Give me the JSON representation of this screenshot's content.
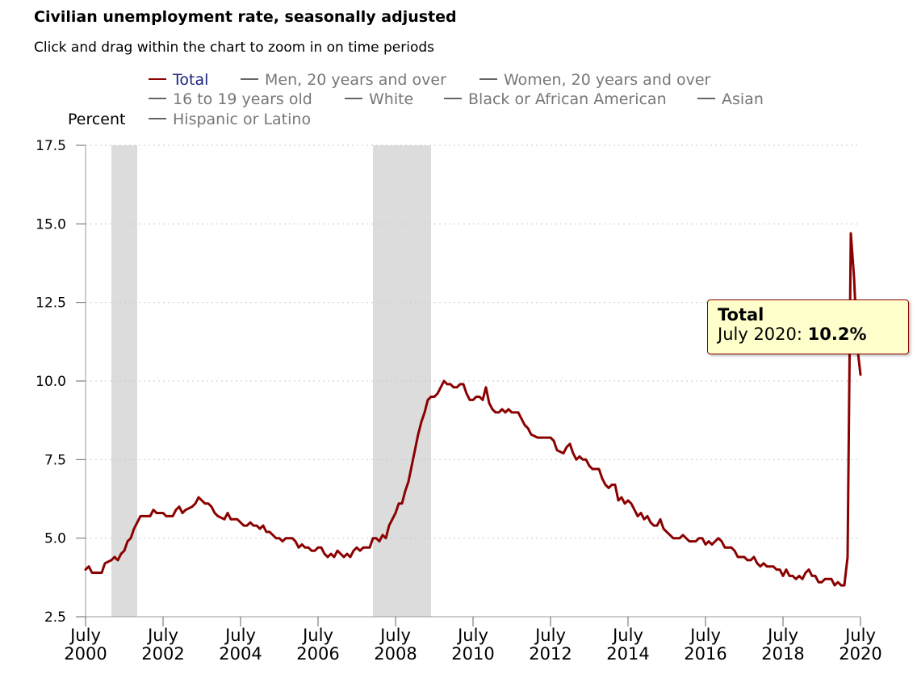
{
  "header": {
    "title": "Civilian unemployment rate, seasonally adjusted",
    "subtitle": "Click and drag within the chart to zoom in on time periods"
  },
  "legend": {
    "items": [
      {
        "label": "Total",
        "active": true
      },
      {
        "label": "Men, 20 years and over",
        "active": false
      },
      {
        "label": "Women, 20 years and over",
        "active": false
      },
      {
        "label": "16 to 19 years old",
        "active": false
      },
      {
        "label": "White",
        "active": false
      },
      {
        "label": "Black or African American",
        "active": false
      },
      {
        "label": "Asian",
        "active": false
      },
      {
        "label": "Hispanic or Latino",
        "active": false
      }
    ]
  },
  "tooltip": {
    "series": "Total",
    "date": "July 2020:",
    "value": "10.2%"
  },
  "colors": {
    "series_total": "#8b0000",
    "recession_band": "#dcdcdc",
    "grid": "#c8c8c8",
    "legend_active_text": "#1a237e",
    "legend_inactive": "#777777",
    "tooltip_bg": "#ffffcc"
  },
  "chart_data": {
    "type": "line",
    "title": "Civilian unemployment rate, seasonally adjusted",
    "ylabel": "Percent",
    "xlabel": "",
    "ylim": [
      2.5,
      17.5
    ],
    "xlim": [
      "2000-07",
      "2020-07"
    ],
    "yticks": [
      "2.5",
      "5.0",
      "7.5",
      "10.0",
      "12.5",
      "15.0",
      "17.5"
    ],
    "xticks": [
      {
        "month": "July",
        "year": "2000"
      },
      {
        "month": "July",
        "year": "2002"
      },
      {
        "month": "July",
        "year": "2004"
      },
      {
        "month": "July",
        "year": "2006"
      },
      {
        "month": "July",
        "year": "2008"
      },
      {
        "month": "July",
        "year": "2010"
      },
      {
        "month": "July",
        "year": "2012"
      },
      {
        "month": "July",
        "year": "2014"
      },
      {
        "month": "July",
        "year": "2016"
      },
      {
        "month": "July",
        "year": "2018"
      },
      {
        "month": "July",
        "year": "2020"
      }
    ],
    "grid": "horizontal dotted",
    "recessions": [
      {
        "start": "2001-03",
        "end": "2001-11"
      },
      {
        "start": "2007-12",
        "end": "2009-06"
      }
    ],
    "series": [
      {
        "name": "Total",
        "points": [
          [
            "2000-07",
            4.0
          ],
          [
            "2000-08",
            4.1
          ],
          [
            "2000-09",
            3.9
          ],
          [
            "2000-12",
            3.9
          ],
          [
            "2001-01",
            4.2
          ],
          [
            "2001-03",
            4.3
          ],
          [
            "2001-04",
            4.4
          ],
          [
            "2001-05",
            4.3
          ],
          [
            "2001-06",
            4.5
          ],
          [
            "2001-07",
            4.6
          ],
          [
            "2001-08",
            4.9
          ],
          [
            "2001-09",
            5.0
          ],
          [
            "2001-10",
            5.3
          ],
          [
            "2001-11",
            5.5
          ],
          [
            "2001-12",
            5.7
          ],
          [
            "2002-03",
            5.7
          ],
          [
            "2002-04",
            5.9
          ],
          [
            "2002-05",
            5.8
          ],
          [
            "2002-06",
            5.8
          ],
          [
            "2002-07",
            5.8
          ],
          [
            "2002-08",
            5.7
          ],
          [
            "2002-10",
            5.7
          ],
          [
            "2002-11",
            5.9
          ],
          [
            "2002-12",
            6.0
          ],
          [
            "2003-01",
            5.8
          ],
          [
            "2003-02",
            5.9
          ],
          [
            "2003-04",
            6.0
          ],
          [
            "2003-05",
            6.1
          ],
          [
            "2003-06",
            6.3
          ],
          [
            "2003-07",
            6.2
          ],
          [
            "2003-08",
            6.1
          ],
          [
            "2003-09",
            6.1
          ],
          [
            "2003-10",
            6.0
          ],
          [
            "2003-11",
            5.8
          ],
          [
            "2003-12",
            5.7
          ],
          [
            "2004-02",
            5.6
          ],
          [
            "2004-03",
            5.8
          ],
          [
            "2004-04",
            5.6
          ],
          [
            "2004-06",
            5.6
          ],
          [
            "2004-07",
            5.5
          ],
          [
            "2004-08",
            5.4
          ],
          [
            "2004-09",
            5.4
          ],
          [
            "2004-10",
            5.5
          ],
          [
            "2004-11",
            5.4
          ],
          [
            "2004-12",
            5.4
          ],
          [
            "2005-01",
            5.3
          ],
          [
            "2005-02",
            5.4
          ],
          [
            "2005-03",
            5.2
          ],
          [
            "2005-04",
            5.2
          ],
          [
            "2005-05",
            5.1
          ],
          [
            "2005-06",
            5.0
          ],
          [
            "2005-07",
            5.0
          ],
          [
            "2005-08",
            4.9
          ],
          [
            "2005-09",
            5.0
          ],
          [
            "2005-11",
            5.0
          ],
          [
            "2005-12",
            4.9
          ],
          [
            "2006-01",
            4.7
          ],
          [
            "2006-02",
            4.8
          ],
          [
            "2006-03",
            4.7
          ],
          [
            "2006-04",
            4.7
          ],
          [
            "2006-05",
            4.6
          ],
          [
            "2006-06",
            4.6
          ],
          [
            "2006-07",
            4.7
          ],
          [
            "2006-08",
            4.7
          ],
          [
            "2006-09",
            4.5
          ],
          [
            "2006-10",
            4.4
          ],
          [
            "2006-11",
            4.5
          ],
          [
            "2006-12",
            4.4
          ],
          [
            "2007-01",
            4.6
          ],
          [
            "2007-02",
            4.5
          ],
          [
            "2007-03",
            4.4
          ],
          [
            "2007-04",
            4.5
          ],
          [
            "2007-05",
            4.4
          ],
          [
            "2007-06",
            4.6
          ],
          [
            "2007-07",
            4.7
          ],
          [
            "2007-08",
            4.6
          ],
          [
            "2007-09",
            4.7
          ],
          [
            "2007-11",
            4.7
          ],
          [
            "2007-12",
            5.0
          ],
          [
            "2008-01",
            5.0
          ],
          [
            "2008-02",
            4.9
          ],
          [
            "2008-03",
            5.1
          ],
          [
            "2008-04",
            5.0
          ],
          [
            "2008-05",
            5.4
          ],
          [
            "2008-06",
            5.6
          ],
          [
            "2008-07",
            5.8
          ],
          [
            "2008-08",
            6.1
          ],
          [
            "2008-09",
            6.1
          ],
          [
            "2008-10",
            6.5
          ],
          [
            "2008-11",
            6.8
          ],
          [
            "2008-12",
            7.3
          ],
          [
            "2009-01",
            7.8
          ],
          [
            "2009-02",
            8.3
          ],
          [
            "2009-03",
            8.7
          ],
          [
            "2009-04",
            9.0
          ],
          [
            "2009-05",
            9.4
          ],
          [
            "2009-06",
            9.5
          ],
          [
            "2009-07",
            9.5
          ],
          [
            "2009-08",
            9.6
          ],
          [
            "2009-09",
            9.8
          ],
          [
            "2009-10",
            10.0
          ],
          [
            "2009-11",
            9.9
          ],
          [
            "2009-12",
            9.9
          ],
          [
            "2010-01",
            9.8
          ],
          [
            "2010-02",
            9.8
          ],
          [
            "2010-03",
            9.9
          ],
          [
            "2010-04",
            9.9
          ],
          [
            "2010-05",
            9.6
          ],
          [
            "2010-06",
            9.4
          ],
          [
            "2010-07",
            9.4
          ],
          [
            "2010-08",
            9.5
          ],
          [
            "2010-09",
            9.5
          ],
          [
            "2010-10",
            9.4
          ],
          [
            "2010-11",
            9.8
          ],
          [
            "2010-12",
            9.3
          ],
          [
            "2011-01",
            9.1
          ],
          [
            "2011-02",
            9.0
          ],
          [
            "2011-03",
            9.0
          ],
          [
            "2011-04",
            9.1
          ],
          [
            "2011-05",
            9.0
          ],
          [
            "2011-06",
            9.1
          ],
          [
            "2011-07",
            9.0
          ],
          [
            "2011-09",
            9.0
          ],
          [
            "2011-10",
            8.8
          ],
          [
            "2011-11",
            8.6
          ],
          [
            "2011-12",
            8.5
          ],
          [
            "2012-01",
            8.3
          ],
          [
            "2012-03",
            8.2
          ],
          [
            "2012-07",
            8.2
          ],
          [
            "2012-08",
            8.1
          ],
          [
            "2012-09",
            7.8
          ],
          [
            "2012-11",
            7.7
          ],
          [
            "2012-12",
            7.9
          ],
          [
            "2013-01",
            8.0
          ],
          [
            "2013-02",
            7.7
          ],
          [
            "2013-03",
            7.5
          ],
          [
            "2013-04",
            7.6
          ],
          [
            "2013-05",
            7.5
          ],
          [
            "2013-06",
            7.5
          ],
          [
            "2013-07",
            7.3
          ],
          [
            "2013-08",
            7.2
          ],
          [
            "2013-10",
            7.2
          ],
          [
            "2013-11",
            6.9
          ],
          [
            "2013-12",
            6.7
          ],
          [
            "2014-01",
            6.6
          ],
          [
            "2014-02",
            6.7
          ],
          [
            "2014-03",
            6.7
          ],
          [
            "2014-04",
            6.2
          ],
          [
            "2014-05",
            6.3
          ],
          [
            "2014-06",
            6.1
          ],
          [
            "2014-07",
            6.2
          ],
          [
            "2014-08",
            6.1
          ],
          [
            "2014-09",
            5.9
          ],
          [
            "2014-10",
            5.7
          ],
          [
            "2014-11",
            5.8
          ],
          [
            "2014-12",
            5.6
          ],
          [
            "2015-01",
            5.7
          ],
          [
            "2015-02",
            5.5
          ],
          [
            "2015-03",
            5.4
          ],
          [
            "2015-04",
            5.4
          ],
          [
            "2015-05",
            5.6
          ],
          [
            "2015-06",
            5.3
          ],
          [
            "2015-07",
            5.2
          ],
          [
            "2015-08",
            5.1
          ],
          [
            "2015-09",
            5.0
          ],
          [
            "2015-11",
            5.0
          ],
          [
            "2015-12",
            5.1
          ],
          [
            "2016-01",
            5.0
          ],
          [
            "2016-02",
            4.9
          ],
          [
            "2016-04",
            4.9
          ],
          [
            "2016-05",
            5.0
          ],
          [
            "2016-06",
            5.0
          ],
          [
            "2016-07",
            4.8
          ],
          [
            "2016-08",
            4.9
          ],
          [
            "2016-09",
            4.8
          ],
          [
            "2016-10",
            4.9
          ],
          [
            "2016-11",
            5.0
          ],
          [
            "2016-12",
            4.9
          ],
          [
            "2017-01",
            4.7
          ],
          [
            "2017-03",
            4.7
          ],
          [
            "2017-04",
            4.6
          ],
          [
            "2017-05",
            4.4
          ],
          [
            "2017-07",
            4.4
          ],
          [
            "2017-08",
            4.3
          ],
          [
            "2017-09",
            4.3
          ],
          [
            "2017-10",
            4.4
          ],
          [
            "2017-11",
            4.2
          ],
          [
            "2017-12",
            4.1
          ],
          [
            "2018-01",
            4.2
          ],
          [
            "2018-02",
            4.1
          ],
          [
            "2018-04",
            4.1
          ],
          [
            "2018-05",
            4.0
          ],
          [
            "2018-06",
            4.0
          ],
          [
            "2018-07",
            3.8
          ],
          [
            "2018-08",
            4.0
          ],
          [
            "2018-09",
            3.8
          ],
          [
            "2018-10",
            3.8
          ],
          [
            "2018-11",
            3.7
          ],
          [
            "2018-12",
            3.8
          ],
          [
            "2019-01",
            3.7
          ],
          [
            "2019-02",
            3.9
          ],
          [
            "2019-03",
            4.0
          ],
          [
            "2019-04",
            3.8
          ],
          [
            "2019-05",
            3.8
          ],
          [
            "2019-06",
            3.6
          ],
          [
            "2019-07",
            3.6
          ],
          [
            "2019-08",
            3.7
          ],
          [
            "2019-10",
            3.7
          ],
          [
            "2019-11",
            3.5
          ],
          [
            "2019-12",
            3.6
          ],
          [
            "2020-01",
            3.5
          ],
          [
            "2020-02",
            3.5
          ],
          [
            "2020-03",
            4.4
          ],
          [
            "2020-04",
            14.7
          ],
          [
            "2020-05",
            13.3
          ],
          [
            "2020-06",
            11.1
          ],
          [
            "2020-07",
            10.2
          ]
        ]
      }
    ]
  }
}
